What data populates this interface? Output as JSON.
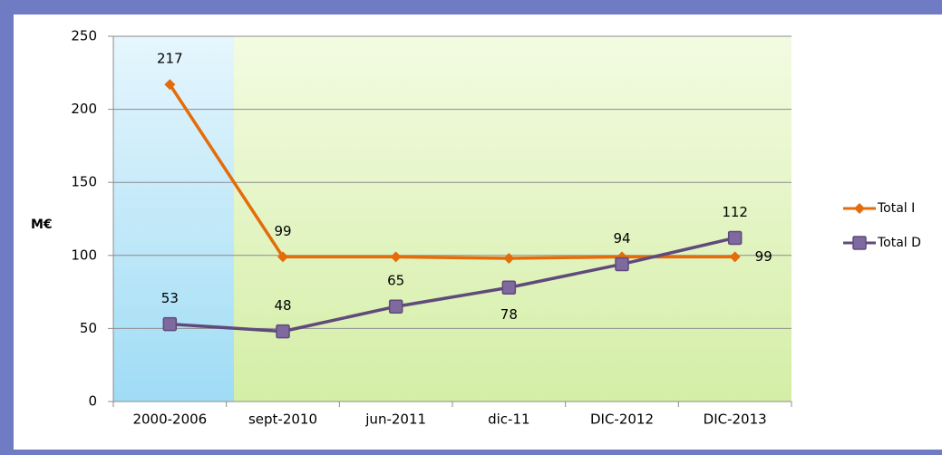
{
  "chart_data": {
    "type": "line",
    "y_axis_label": "M€",
    "categories": [
      "2000-2006",
      "sept-2010",
      "jun-2011",
      "dic-11",
      "DIC-2012",
      "DIC-2013"
    ],
    "series": [
      {
        "name": "Total I",
        "color": "#e46c0a",
        "marker": "diamond",
        "values": [
          217,
          99,
          99,
          98,
          99,
          99
        ],
        "value_labels": [
          "217",
          "99",
          null,
          null,
          null,
          "99"
        ]
      },
      {
        "name": "Total D",
        "color": "#604a7b",
        "marker": "square",
        "values": [
          53,
          48,
          65,
          78,
          94,
          112
        ]
      }
    ],
    "ylim": [
      0,
      250
    ],
    "yticks": [
      0,
      50,
      100,
      150,
      200,
      250
    ],
    "grid": true,
    "legend": "right"
  }
}
